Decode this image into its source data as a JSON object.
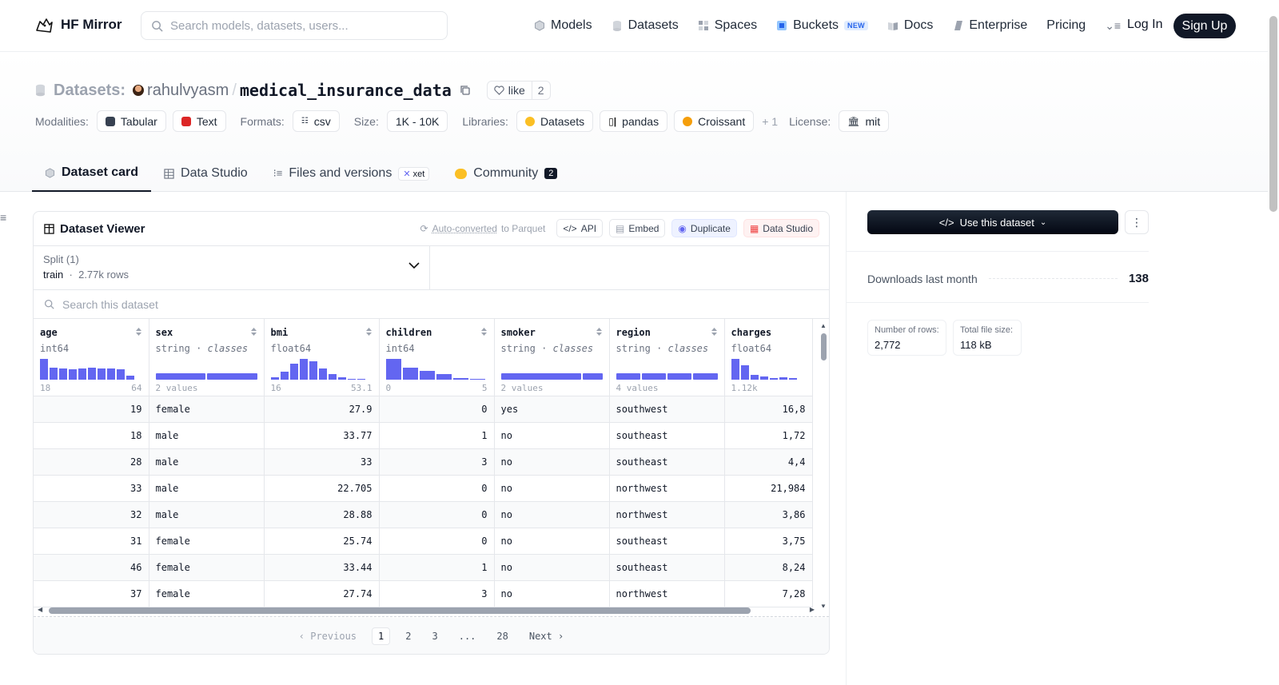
{
  "nav": {
    "brand": "HF Mirror",
    "search_placeholder": "Search models, datasets, users...",
    "items": [
      {
        "label": "Models",
        "icon": "models-icon"
      },
      {
        "label": "Datasets",
        "icon": "datasets-icon"
      },
      {
        "label": "Spaces",
        "icon": "spaces-icon"
      },
      {
        "label": "Buckets",
        "icon": "buckets-icon",
        "badge": "NEW"
      },
      {
        "label": "Docs",
        "icon": "docs-icon"
      },
      {
        "label": "Enterprise",
        "icon": "enterprise-icon"
      },
      {
        "label": "Pricing"
      }
    ],
    "login": "Log In",
    "signup": "Sign Up"
  },
  "header": {
    "section_label": "Datasets:",
    "owner": "rahulvyasm",
    "repo": "medical_insurance_data",
    "like_label": "like",
    "like_count": "2",
    "modalities_label": "Modalities:",
    "modalities": [
      "Tabular",
      "Text"
    ],
    "formats_label": "Formats:",
    "format": "csv",
    "size_label": "Size:",
    "size": "1K - 10K",
    "libraries_label": "Libraries:",
    "libraries": [
      "Datasets",
      "pandas",
      "Croissant"
    ],
    "libraries_more": "+ 1",
    "license_label": "License:",
    "license": "mit"
  },
  "tabs": [
    {
      "label": "Dataset card",
      "active": true
    },
    {
      "label": "Data Studio"
    },
    {
      "label": "Files and versions",
      "badge": "xet"
    },
    {
      "label": "Community",
      "badge": "2"
    }
  ],
  "viewer": {
    "title": "Dataset Viewer",
    "auto_converted_link": "Auto-converted",
    "auto_converted_suffix": "to Parquet",
    "actions": [
      "API",
      "Embed",
      "Duplicate",
      "Data Studio"
    ],
    "split_label": "Split (1)",
    "split_value": "train",
    "split_rows": "2.77k rows",
    "search_placeholder": "Search this dataset",
    "columns": [
      {
        "name": "age",
        "type": "int64",
        "range_min": "18",
        "range_max": "64"
      },
      {
        "name": "sex",
        "type": "string",
        "type_suffix": "classes",
        "range": "2 values"
      },
      {
        "name": "bmi",
        "type": "float64",
        "range_min": "16",
        "range_max": "53.1"
      },
      {
        "name": "children",
        "type": "int64",
        "range_min": "0",
        "range_max": "5"
      },
      {
        "name": "smoker",
        "type": "string",
        "type_suffix": "classes",
        "range": "2 values"
      },
      {
        "name": "region",
        "type": "string",
        "type_suffix": "classes",
        "range": "4 values"
      },
      {
        "name": "charges",
        "type": "float64",
        "range_min": "1.12k"
      }
    ],
    "rows": [
      [
        "19",
        "female",
        "27.9",
        "0",
        "yes",
        "southwest",
        "16,8"
      ],
      [
        "18",
        "male",
        "33.77",
        "1",
        "no",
        "southeast",
        "1,72"
      ],
      [
        "28",
        "male",
        "33",
        "3",
        "no",
        "southeast",
        "4,4"
      ],
      [
        "33",
        "male",
        "22.705",
        "0",
        "no",
        "northwest",
        "21,984"
      ],
      [
        "32",
        "male",
        "28.88",
        "0",
        "no",
        "northwest",
        "3,86"
      ],
      [
        "31",
        "female",
        "25.74",
        "0",
        "no",
        "southeast",
        "3,75"
      ],
      [
        "46",
        "female",
        "33.44",
        "1",
        "no",
        "southeast",
        "8,24"
      ],
      [
        "37",
        "female",
        "27.74",
        "3",
        "no",
        "northwest",
        "7,28"
      ]
    ],
    "pager": {
      "prev": "Previous",
      "pages": [
        "1",
        "2",
        "3",
        "...",
        "28"
      ],
      "current": "1",
      "next": "Next"
    }
  },
  "sidebar": {
    "use_button": "Use this dataset",
    "downloads_label": "Downloads last month",
    "downloads_value": "138",
    "rows_label": "Number of rows:",
    "rows_value": "2,772",
    "size_label": "Total file size:",
    "size_value": "118 kB"
  },
  "colors": {
    "accent": "#6366f1",
    "dark": "#111827"
  }
}
